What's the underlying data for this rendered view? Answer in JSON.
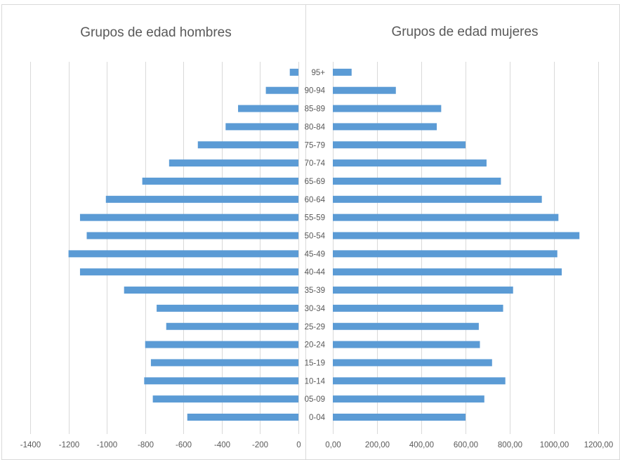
{
  "chart_data": [
    {
      "type": "bar",
      "orientation": "horizontal",
      "title": "Grupos de edad hombres",
      "categories": [
        "0-04",
        "05-09",
        "10-14",
        "15-19",
        "20-24",
        "25-29",
        "30-34",
        "35-39",
        "40-44",
        "45-49",
        "50-54",
        "55-59",
        "60-64",
        "65-69",
        "70-74",
        "75-79",
        "80-84",
        "85-89",
        "90-94",
        "95+"
      ],
      "values": [
        -580,
        -760,
        -805,
        -770,
        -800,
        -690,
        -740,
        -910,
        -1140,
        -1200,
        -1105,
        -1140,
        -1005,
        -815,
        -675,
        -525,
        -380,
        -315,
        -170,
        -45
      ],
      "xlim": [
        -1400,
        0
      ],
      "xticks": [
        "-1400",
        "-1200",
        "-1000",
        "-800",
        "-600",
        "-400",
        "-200",
        "0"
      ],
      "grid": true,
      "color": "#5b9bd5"
    },
    {
      "type": "bar",
      "orientation": "horizontal",
      "title": "Grupos de edad mujeres",
      "categories": [
        "0-04",
        "05-09",
        "10-14",
        "15-19",
        "20-24",
        "25-29",
        "30-34",
        "35-39",
        "40-44",
        "45-49",
        "50-54",
        "55-59",
        "60-64",
        "65-69",
        "70-74",
        "75-79",
        "80-84",
        "85-89",
        "90-94",
        "95+"
      ],
      "values": [
        600,
        685,
        780,
        720,
        665,
        660,
        770,
        815,
        1035,
        1015,
        1115,
        1020,
        945,
        760,
        695,
        600,
        470,
        490,
        285,
        85
      ],
      "xlim": [
        0,
        1200
      ],
      "xticks": [
        "0,00",
        "200,00",
        "400,00",
        "600,00",
        "800,00",
        "1000,00",
        "1200,00"
      ],
      "grid": true,
      "color": "#5b9bd5"
    }
  ]
}
